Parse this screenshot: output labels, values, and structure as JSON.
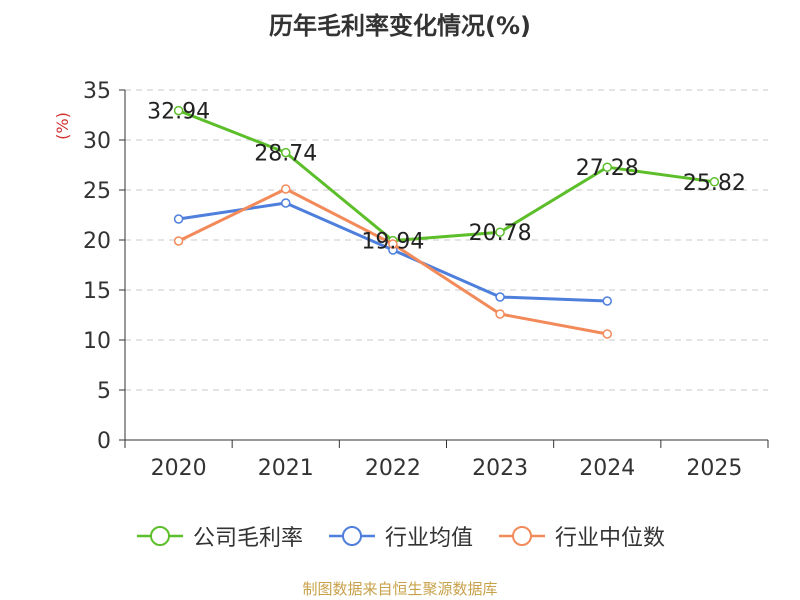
{
  "chart_data": {
    "type": "line",
    "title": "历年毛利率变化情况(%)",
    "ylabel": "(%)",
    "xlabel": "",
    "categories": [
      "2020",
      "2021",
      "2022",
      "2023",
      "2024",
      "2025"
    ],
    "ylim": [
      0,
      35
    ],
    "yticks": [
      0,
      5,
      10,
      15,
      20,
      25,
      30,
      35
    ],
    "grid": "horizontal-dashed",
    "legend_position": "bottom",
    "series": [
      {
        "name": "公司毛利率",
        "color": "#5cbf2a",
        "values": [
          32.94,
          28.74,
          19.94,
          20.78,
          27.28,
          25.82
        ],
        "labels": [
          "32.94",
          "28.74",
          "19.94",
          "20.78",
          "27.28",
          "25.82"
        ]
      },
      {
        "name": "行业均值",
        "color": "#4e7fdc",
        "values": [
          22.1,
          23.7,
          19.0,
          14.3,
          13.9,
          null
        ]
      },
      {
        "name": "行业中位数",
        "color": "#f28a5a",
        "values": [
          19.9,
          25.1,
          19.6,
          12.6,
          10.6,
          null
        ]
      }
    ]
  },
  "footer": {
    "source": "制图数据来自恒生聚源数据库"
  }
}
